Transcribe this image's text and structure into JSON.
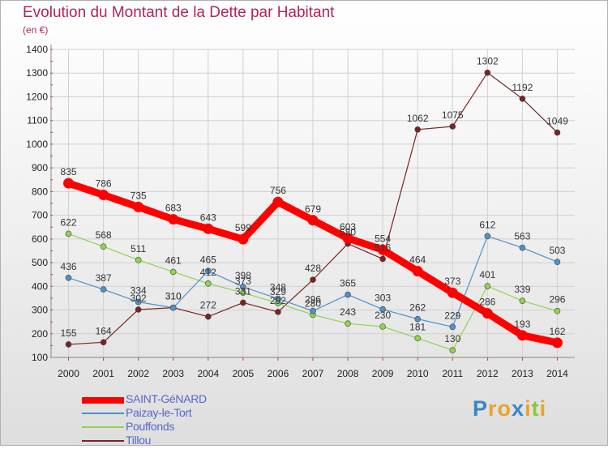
{
  "header": {
    "title": "Evolution du Montant de la Dette par Habitant",
    "subtitle": "(en €)"
  },
  "chart_data": {
    "type": "line",
    "ylim": [
      100,
      1400
    ],
    "yticks": [
      100,
      200,
      300,
      400,
      500,
      600,
      700,
      800,
      900,
      1000,
      1100,
      1200,
      1300,
      1400
    ],
    "x": [
      "2000",
      "2001",
      "2002",
      "2003",
      "2004",
      "2005",
      "2006",
      "2007",
      "2008",
      "2009",
      "2010",
      "2011",
      "2012",
      "2013",
      "2014"
    ],
    "grid": true,
    "legend": "bottom-left",
    "series": [
      {
        "name": "Tillou",
        "color": "#7a2323",
        "values": [
          155,
          164,
          302,
          310,
          272,
          331,
          292,
          428,
          580,
          516,
          1062,
          1075,
          1302,
          1192,
          1049
        ]
      },
      {
        "name": "Pouffonds",
        "color": "#8fd44e",
        "values": [
          622,
          568,
          511,
          461,
          412,
          373,
          329,
          280,
          243,
          230,
          181,
          130,
          401,
          339,
          296
        ]
      },
      {
        "name": "Paizay-le-Tort",
        "color": "#4f91c9",
        "values": [
          436,
          387,
          334,
          310,
          465,
          398,
          348,
          296,
          365,
          303,
          262,
          229,
          612,
          563,
          503
        ]
      },
      {
        "name": "SAINT-GéNARD",
        "color": "#ff0000",
        "values": [
          835,
          786,
          735,
          683,
          643,
          599,
          756,
          679,
          603,
          554,
          464,
          373,
          286,
          193,
          162
        ]
      }
    ]
  },
  "legend": {
    "items": [
      {
        "label": "SAINT-GéNARD",
        "color": "#ff0000"
      },
      {
        "label": "Paizay-le-Tort",
        "color": "#4f91c9"
      },
      {
        "label": "Pouffonds",
        "color": "#8fd44e"
      },
      {
        "label": "Tillou",
        "color": "#7a2323"
      }
    ]
  },
  "logo": {
    "letters": [
      "P",
      "r",
      "o",
      "x",
      "i",
      "t",
      "i"
    ],
    "colors": [
      "#3a86c8",
      "#e8a32a",
      "#e8a32a",
      "#3a86c8",
      "#e8a32a",
      "#8cc63f",
      "#e8a32a"
    ]
  }
}
